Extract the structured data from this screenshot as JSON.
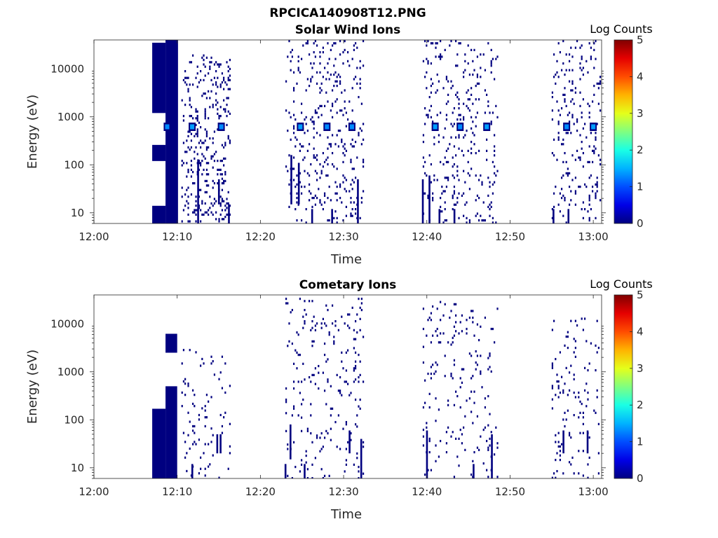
{
  "figure": {
    "title": "RPCICA140908T12.PNG"
  },
  "colorbar": {
    "label": "Log Counts",
    "ticks": [
      "0",
      "1",
      "2",
      "3",
      "4",
      "5"
    ],
    "colormap": "jet",
    "range": [
      0,
      5
    ]
  },
  "chart_data": [
    {
      "type": "heatmap",
      "title": "Solar Wind Ions",
      "xlabel": "Time",
      "ylabel": "Energy (eV)",
      "yscale": "log",
      "xlim": [
        "12:00",
        "13:01"
      ],
      "ylim": [
        6,
        40000
      ],
      "xticks": [
        "12:00",
        "12:10",
        "12:20",
        "12:30",
        "12:40",
        "12:50",
        "13:00"
      ],
      "yticks": [
        "10",
        "100",
        "1000",
        "10000"
      ],
      "grid": false,
      "solid_blocks": [
        {
          "t0": "12:07.0",
          "t1": "12:08.6",
          "e0": 6,
          "e1": 14,
          "value": 0
        },
        {
          "t0": "12:07.0",
          "t1": "12:08.6",
          "e0": 120,
          "e1": 260,
          "value": 0
        },
        {
          "t0": "12:07.0",
          "t1": "12:08.6",
          "e0": 1200,
          "e1": 35000,
          "value": 0
        },
        {
          "t0": "12:08.6",
          "t1": "12:10.1",
          "e0": 6,
          "e1": 40000,
          "value": 0
        }
      ],
      "bright_spots": [
        {
          "t": "12:08.8",
          "e": 620,
          "value": 1.3
        },
        {
          "t": "12:11.8",
          "e": 620,
          "value": 1.4
        },
        {
          "t": "12:15.3",
          "e": 620,
          "value": 1.3
        },
        {
          "t": "12:24.8",
          "e": 620,
          "value": 1.4
        },
        {
          "t": "12:28.0",
          "e": 620,
          "value": 1.3
        },
        {
          "t": "12:31.0",
          "e": 620,
          "value": 1.3
        },
        {
          "t": "12:41.0",
          "e": 620,
          "value": 1.4
        },
        {
          "t": "12:44.0",
          "e": 620,
          "value": 1.3
        },
        {
          "t": "12:47.2",
          "e": 620,
          "value": 1.4
        },
        {
          "t": "12:56.8",
          "e": 620,
          "value": 1.3
        },
        {
          "t": "13:00.0",
          "e": 620,
          "value": 1.4
        }
      ],
      "sparse_clusters": [
        {
          "t0": "12:10.5",
          "t1": "12:16.5",
          "e0": 6,
          "e1": 20000,
          "density": 0.35,
          "value": 0
        },
        {
          "t0": "12:23.0",
          "t1": "12:32.5",
          "e0": 6,
          "e1": 40000,
          "density": 0.22,
          "value": 0
        },
        {
          "t0": "12:39.5",
          "t1": "12:48.5",
          "e0": 6,
          "e1": 40000,
          "density": 0.2,
          "value": 0
        },
        {
          "t0": "12:55.0",
          "t1": "13:01.0",
          "e0": 6,
          "e1": 40000,
          "density": 0.2,
          "value": 0
        }
      ],
      "vertical_streaks": [
        {
          "t": "12:12.5",
          "e0": 6,
          "e1": 130
        },
        {
          "t": "12:15.0",
          "e0": 15,
          "e1": 50
        },
        {
          "t": "12:16.2",
          "e0": 6,
          "e1": 15
        },
        {
          "t": "12:23.7",
          "e0": 15,
          "e1": 160
        },
        {
          "t": "12:24.6",
          "e0": 15,
          "e1": 110
        },
        {
          "t": "12:26.2",
          "e0": 6,
          "e1": 12
        },
        {
          "t": "12:28.6",
          "e0": 6,
          "e1": 12
        },
        {
          "t": "12:31.7",
          "e0": 6,
          "e1": 50
        },
        {
          "t": "12:39.5",
          "e0": 6,
          "e1": 50
        },
        {
          "t": "12:40.3",
          "e0": 6,
          "e1": 60
        },
        {
          "t": "12:41.5",
          "e0": 6,
          "e1": 12
        },
        {
          "t": "12:43.3",
          "e0": 6,
          "e1": 12
        },
        {
          "t": "12:55.2",
          "e0": 6,
          "e1": 12
        },
        {
          "t": "12:57.0",
          "e0": 6,
          "e1": 12
        }
      ]
    },
    {
      "type": "heatmap",
      "title": "Cometary Ions",
      "xlabel": "Time",
      "ylabel": "Energy (eV)",
      "yscale": "log",
      "xlim": [
        "12:00",
        "13:01"
      ],
      "ylim": [
        6,
        40000
      ],
      "xticks": [
        "12:00",
        "12:10",
        "12:20",
        "12:30",
        "12:40",
        "12:50",
        "13:00"
      ],
      "yticks": [
        "10",
        "100",
        "1000",
        "10000"
      ],
      "grid": false,
      "solid_blocks": [
        {
          "t0": "12:07.0",
          "t1": "12:08.6",
          "e0": 6,
          "e1": 170,
          "value": 0
        },
        {
          "t0": "12:08.6",
          "t1": "12:10.0",
          "e0": 6,
          "e1": 500,
          "value": 0
        },
        {
          "t0": "12:08.6",
          "t1": "12:10.0",
          "e0": 2500,
          "e1": 6200,
          "value": 0
        }
      ],
      "bright_spots": [],
      "sparse_clusters": [
        {
          "t0": "12:10.5",
          "t1": "12:16.5",
          "e0": 6,
          "e1": 3000,
          "density": 0.12,
          "value": 0
        },
        {
          "t0": "12:23.0",
          "t1": "12:32.5",
          "e0": 6,
          "e1": 35000,
          "density": 0.14,
          "value": 0
        },
        {
          "t0": "12:39.5",
          "t1": "12:48.5",
          "e0": 6,
          "e1": 30000,
          "density": 0.12,
          "value": 0
        },
        {
          "t0": "12:55.0",
          "t1": "13:01.0",
          "e0": 6,
          "e1": 15000,
          "density": 0.12,
          "value": 0
        }
      ],
      "vertical_streaks": [
        {
          "t": "12:11.8",
          "e0": 6,
          "e1": 12
        },
        {
          "t": "12:14.8",
          "e0": 20,
          "e1": 50
        },
        {
          "t": "12:15.2",
          "e0": 20,
          "e1": 50
        },
        {
          "t": "12:23.0",
          "e0": 6,
          "e1": 12
        },
        {
          "t": "12:23.6",
          "e0": 15,
          "e1": 80
        },
        {
          "t": "12:25.3",
          "e0": 6,
          "e1": 12
        },
        {
          "t": "12:30.7",
          "e0": 20,
          "e1": 60
        },
        {
          "t": "12:32.1",
          "e0": 6,
          "e1": 40
        },
        {
          "t": "12:40.0",
          "e0": 6,
          "e1": 60
        },
        {
          "t": "12:45.6",
          "e0": 6,
          "e1": 12
        },
        {
          "t": "12:47.8",
          "e0": 6,
          "e1": 50
        },
        {
          "t": "12:56.4",
          "e0": 20,
          "e1": 60
        },
        {
          "t": "12:59.3",
          "e0": 20,
          "e1": 60
        }
      ]
    }
  ]
}
